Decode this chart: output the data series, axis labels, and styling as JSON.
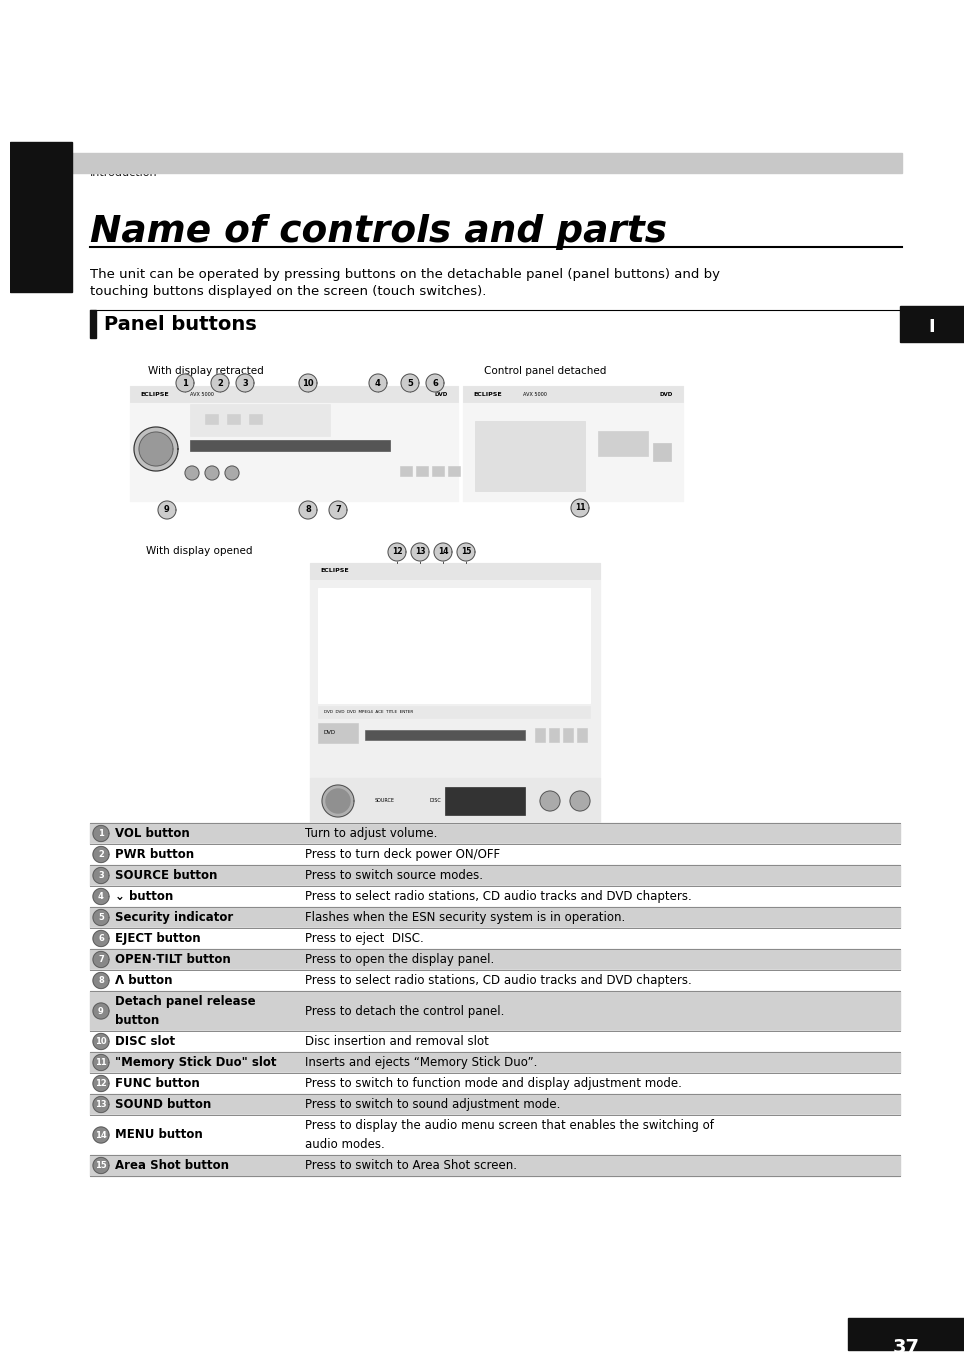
{
  "bg_color": "#ffffff",
  "header_bar_color": "#cccccc",
  "header_text": "Introduction",
  "title": "Name of controls and parts",
  "body_line1": "The unit can be operated by pressing buttons on the detachable panel (panel buttons) and by",
  "body_line2": "touching buttons displayed on the screen (touch switches).",
  "section_title": "Panel buttons",
  "section_I_label": "I",
  "label_retracted": "With display retracted",
  "label_detached": "Control panel detached",
  "label_opened": "With display opened",
  "table_rows": [
    {
      "num": "1",
      "name": "VOL button",
      "desc": "Turn to adjust volume.",
      "rows": 1
    },
    {
      "num": "2",
      "name": "PWR button",
      "desc": "Press to turn deck power ON/OFF",
      "rows": 1
    },
    {
      "num": "3",
      "name": "SOURCE button",
      "desc": "Press to switch source modes.",
      "rows": 1
    },
    {
      "num": "4",
      "name": "⌄ button",
      "desc": "Press to select radio stations, CD audio tracks and DVD chapters.",
      "rows": 1
    },
    {
      "num": "5",
      "name": "Security indicator",
      "desc": "Flashes when the ESN security system is in operation.",
      "rows": 1
    },
    {
      "num": "6",
      "name": "EJECT button",
      "desc": "Press to eject  DISC.",
      "rows": 1
    },
    {
      "num": "7",
      "name": "OPEN·TILT button",
      "desc": "Press to open the display panel.",
      "rows": 1
    },
    {
      "num": "8",
      "name": "Λ button",
      "desc": "Press to select radio stations, CD audio tracks and DVD chapters.",
      "rows": 1
    },
    {
      "num": "9",
      "name": "Detach panel release\nbutton",
      "desc": "Press to detach the control panel.",
      "rows": 2
    },
    {
      "num": "10",
      "name": "DISC slot",
      "desc": "Disc insertion and removal slot",
      "rows": 1
    },
    {
      "num": "11",
      "name": "\"Memory Stick Duo\" slot",
      "desc": "Inserts and ejects “Memory Stick Duo”.",
      "rows": 1
    },
    {
      "num": "12",
      "name": "FUNC button",
      "desc": "Press to switch to function mode and display adjustment mode.",
      "rows": 1
    },
    {
      "num": "13",
      "name": "SOUND button",
      "desc": "Press to switch to sound adjustment mode.",
      "rows": 1
    },
    {
      "num": "14",
      "name": "MENU button",
      "desc": "Press to display the audio menu screen that enables the switching of\naudio modes.",
      "rows": 2
    },
    {
      "num": "15",
      "name": "Area Shot button",
      "desc": "Press to switch to Area Shot screen.",
      "rows": 1
    }
  ],
  "page_number": "37",
  "table_alt_bg": "#d0d0d0",
  "table_border": "#888888"
}
